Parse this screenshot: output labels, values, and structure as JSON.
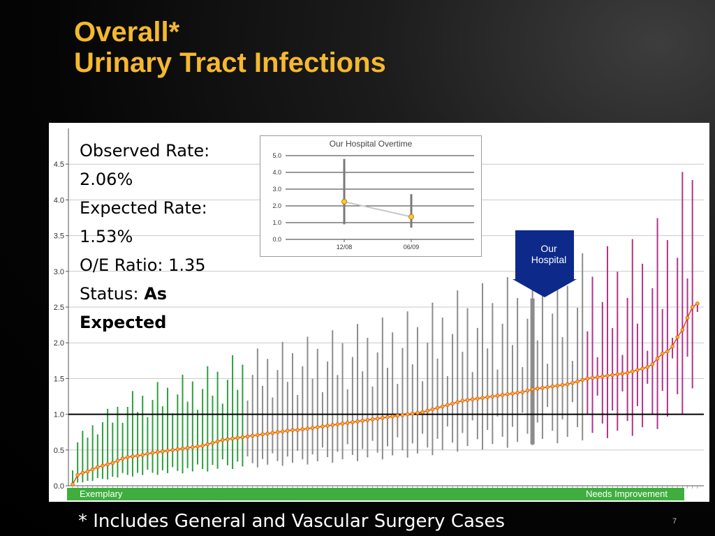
{
  "title": {
    "line1": "Overall*",
    "line2": "Urinary Tract Infections"
  },
  "stats": {
    "observed_label": "Observed Rate:",
    "observed_value": "2.06%",
    "expected_label": "Expected Rate:",
    "expected_value": "1.53%",
    "ratio_text": "O/E Ratio: 1.35",
    "status_label": "Status:",
    "status_value_1": "As",
    "status_value_2": "Expected"
  },
  "band": {
    "left_label": "Exemplary",
    "right_label": "Needs Improvement"
  },
  "marker": {
    "line1": "Our",
    "line2": "Hospital"
  },
  "footnote": "* Includes General and Vascular Surgery Cases",
  "page_number": "7",
  "colors": {
    "title": "#f5b82e",
    "exemplary_bars": "#2e9e3e",
    "as_expected_bars": "#8c8c8c",
    "needs_improvement_bars": "#b0338a",
    "our_hospital_bar": "#8c8c8c",
    "point_fill": "#f0b623",
    "point_stroke": "#e8461a",
    "marker": "#0d2a8a",
    "band": "#3fae3f"
  },
  "chart_data": [
    {
      "type": "scatter",
      "title": "",
      "xlabel": "",
      "ylabel": "",
      "ylim": [
        0,
        5.0
      ],
      "yticks": [
        "0.0",
        "0.5",
        "1.0",
        "1.5",
        "2.0",
        "2.5",
        "3.0",
        "3.5",
        "4.0",
        "4.5"
      ],
      "reference_line": 1.0,
      "grid": true,
      "series": [
        {
          "name": "Exemplary",
          "color": "#2e9e3e",
          "values": [
            0.02,
            0.15,
            0.18,
            0.2,
            0.23,
            0.26,
            0.28,
            0.3,
            0.32,
            0.35,
            0.38,
            0.4,
            0.41,
            0.42,
            0.43,
            0.45,
            0.46,
            0.47,
            0.48,
            0.49,
            0.5,
            0.51,
            0.52,
            0.53,
            0.54,
            0.55,
            0.56,
            0.58,
            0.6,
            0.62,
            0.64,
            0.65,
            0.66,
            0.67,
            0.68
          ]
        },
        {
          "name": "As Expected",
          "color": "#8c8c8c",
          "values": [
            0.69,
            0.7,
            0.71,
            0.72,
            0.73,
            0.74,
            0.75,
            0.76,
            0.77,
            0.78,
            0.78,
            0.79,
            0.8,
            0.81,
            0.82,
            0.83,
            0.84,
            0.85,
            0.86,
            0.87,
            0.88,
            0.89,
            0.9,
            0.91,
            0.92,
            0.93,
            0.94,
            0.95,
            0.96,
            0.97,
            0.98,
            0.99,
            1.0,
            1.01,
            1.02,
            1.03,
            1.05,
            1.07,
            1.09,
            1.11,
            1.13,
            1.15,
            1.17,
            1.19,
            1.2,
            1.21,
            1.22,
            1.23,
            1.24,
            1.25,
            1.26,
            1.27,
            1.28,
            1.29,
            1.3,
            1.31,
            1.33,
            1.35,
            1.36,
            1.37,
            1.38,
            1.39,
            1.4,
            1.41,
            1.42,
            1.44,
            1.46,
            1.48
          ]
        },
        {
          "name": "Needs Improvement",
          "color": "#b0338a",
          "values": [
            1.5,
            1.51,
            1.52,
            1.53,
            1.54,
            1.55,
            1.56,
            1.57,
            1.58,
            1.6,
            1.62,
            1.64,
            1.66,
            1.7,
            1.78,
            1.85,
            1.88,
            1.95,
            2.08,
            2.18,
            2.35,
            2.5,
            2.55
          ]
        }
      ],
      "our_hospital": {
        "label": "Our Hospital",
        "value": 1.35,
        "ci": [
          0.58,
          2.62
        ]
      }
    },
    {
      "type": "line",
      "title": "Our Hospital Overtime",
      "x": [
        "12/08",
        "06/09"
      ],
      "values": [
        2.25,
        1.35
      ],
      "ci_low": [
        0.9,
        0.7
      ],
      "ci_high": [
        4.8,
        2.7
      ],
      "ylim": [
        0,
        5.0
      ],
      "yticks": [
        "0.0",
        "1.0",
        "2.0",
        "3.0",
        "4.0",
        "5.0"
      ],
      "grid": true
    }
  ]
}
